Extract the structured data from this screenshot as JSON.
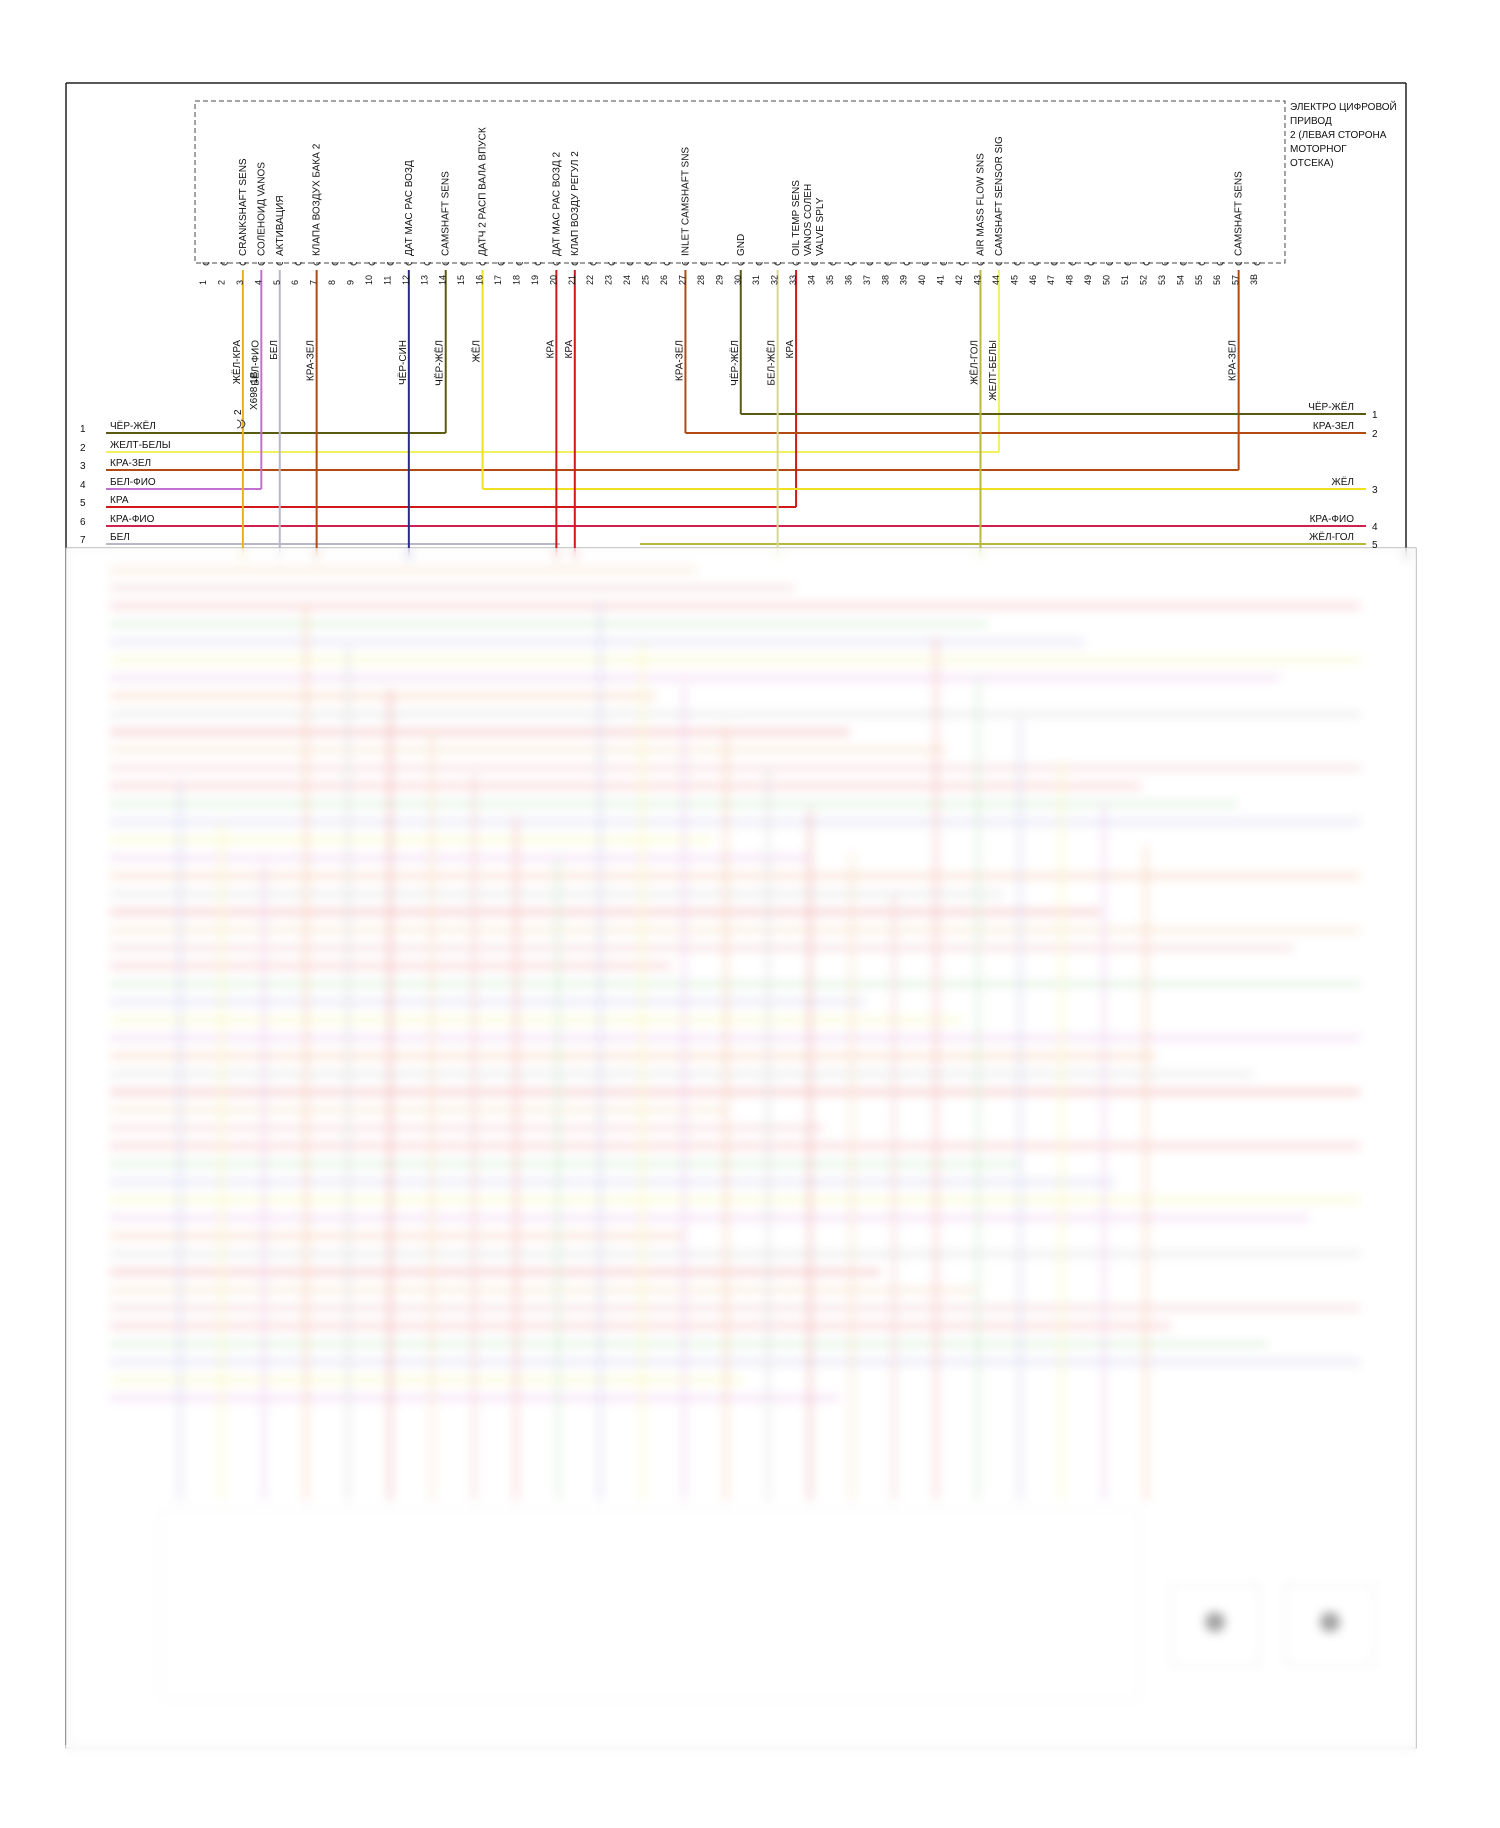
{
  "connector": {
    "title_lines": [
      "ЭЛЕКТРО ЦИФРОВОЙ",
      "ПРИВОД",
      "2 (ЛЕВАЯ СТОРОНА",
      "МОТОРНОГ",
      "ОТСЕКА)"
    ],
    "pin_count": 58,
    "pin_label_last": "3B",
    "functions": [
      {
        "pin": 3,
        "text": "CRANKSHAFT SENS"
      },
      {
        "pin": 4,
        "text": "СОЛЕНОИД VANOS"
      },
      {
        "pin": 5,
        "text": "АКТИВАЦИЯ"
      },
      {
        "pin": 7,
        "text": "КЛАПА ВОЗДУХ БАКА 2"
      },
      {
        "pin": 12,
        "text": "ДАТ МАС РАС ВОЗД"
      },
      {
        "pin": 14,
        "text": "CAMSHAFT SENS"
      },
      {
        "pin": 16,
        "text": "ДАТЧ 2 РАСП ВАЛА ВПУСК"
      },
      {
        "pin": 20,
        "text": "ДАТ МАС РАС ВОЗД 2"
      },
      {
        "pin": 21,
        "text": "КЛАП ВОЗДУ РЕГУЛ 2"
      },
      {
        "pin": 27,
        "text": "INLET CAMSHAFT SNS"
      },
      {
        "pin": 30,
        "text": "GND"
      },
      {
        "pin": 33,
        "text": "OIL TEMP SENS"
      },
      {
        "pin": 33.65,
        "text": "VANOS СОЛЕН"
      },
      {
        "pin": 34.3,
        "text": "VALVE SPLY"
      },
      {
        "pin": 43,
        "text": "AIR MASS FLOW SNS"
      },
      {
        "pin": 44,
        "text": "CAMSHAFT SENSOR SIG"
      },
      {
        "pin": 57,
        "text": "CAMSHAFT SENS"
      }
    ],
    "wires": [
      {
        "pin": 3,
        "text": "ЖЁЛ-КРА",
        "color": "#e8b020"
      },
      {
        "pin": 4,
        "text": "БЕЛ-ФИО",
        "color": "#c070d0"
      },
      {
        "pin": 5,
        "text": "БЕЛ",
        "color": "#b8b8c8"
      },
      {
        "pin": 7,
        "text": "КРА-ЗЕЛ",
        "color": "#b04a10"
      },
      {
        "pin": 12,
        "text": "ЧЁР-СИН",
        "color": "#2a2a8a"
      },
      {
        "pin": 14,
        "text": "ЧЁР-ЖЁЛ",
        "color": "#5a5a10"
      },
      {
        "pin": 16,
        "text": "ЖЁЛ",
        "color": "#f0e020"
      },
      {
        "pin": 20,
        "text": "КРА",
        "color": "#d01818"
      },
      {
        "pin": 21,
        "text": "КРА",
        "color": "#d01818"
      },
      {
        "pin": 27,
        "text": "КРА-ЗЕЛ",
        "color": "#b04a10"
      },
      {
        "pin": 30,
        "text": "ЧЁР-ЖЁЛ",
        "color": "#5a5a10"
      },
      {
        "pin": 32,
        "text": "БЕЛ-ЖЁЛ",
        "color": "#d8d890"
      },
      {
        "pin": 33,
        "text": "КРА",
        "color": "#d01818"
      },
      {
        "pin": 43,
        "text": "ЖЁЛ-ГОЛ",
        "color": "#b8b840"
      },
      {
        "pin": 44,
        "text": "ЖЕЛТ-БЕЛЫ",
        "color": "#f0f060"
      },
      {
        "pin": 57,
        "text": "КРА-ЗЕЛ",
        "color": "#b04a10"
      }
    ]
  },
  "splice": {
    "label": "X698 1B",
    "pin": "2"
  },
  "left_lines": [
    {
      "num": "1",
      "text": "ЧЁР-ЖЁЛ",
      "color": "#5a5a10"
    },
    {
      "num": "2",
      "text": "ЖЕЛТ-БЕЛЫ",
      "color": "#f0f060"
    },
    {
      "num": "3",
      "text": "КРА-ЗЕЛ",
      "color": "#b04a10"
    },
    {
      "num": "4",
      "text": "БЕЛ-ФИО",
      "color": "#c070d0"
    },
    {
      "num": "5",
      "text": "КРА",
      "color": "#d01818"
    },
    {
      "num": "6",
      "text": "КРА-ФИО",
      "color": "#d02050"
    },
    {
      "num": "7",
      "text": "БЕЛ",
      "color": "#b8b8c8"
    }
  ],
  "right_lines": [
    {
      "num": "1",
      "text": "ЧЁР-ЖЁЛ",
      "color": "#5a5a10"
    },
    {
      "num": "2",
      "text": "КРА-ЗЕЛ",
      "color": "#b04a10"
    },
    {
      "num": "3",
      "text": "ЖЁЛ",
      "color": "#f0e020"
    },
    {
      "num": "4",
      "text": "КРА-ФИО",
      "color": "#d02050"
    },
    {
      "num": "5",
      "text": "ЖЁЛ-ГОЛ",
      "color": "#b8b840"
    }
  ]
}
